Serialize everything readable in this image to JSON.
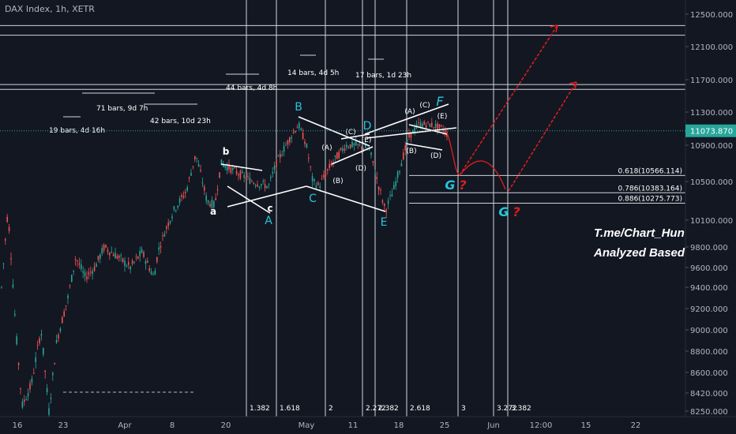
{
  "header": {
    "symbol_line": "DAX Index, 1h, XETR"
  },
  "price_axis": {
    "ticks": [
      8250.0,
      8420.0,
      8600.0,
      8800.0,
      9000.0,
      9200.0,
      9400.0,
      9600.0,
      9800.0,
      10100.0,
      10500.0,
      10900.0,
      11300.0,
      11700.0,
      12100.0,
      12500.0
    ],
    "tick_labels": [
      "8250.000",
      "8420.000",
      "8600.000",
      "8800.000",
      "9000.000",
      "9200.000",
      "9400.000",
      "9600.000",
      "9800.000",
      "10100.000",
      "10500.000",
      "10900.000",
      "11300.000",
      "11700.000",
      "12100.000",
      "12500.000"
    ],
    "current_price_label": "11073.870"
  },
  "time_axis": {
    "labels": [
      "16",
      "23",
      "Apr",
      "8",
      "20",
      "May",
      "11",
      "18",
      "25",
      "Jun",
      "12:00",
      "15",
      "22"
    ]
  },
  "chart_data": {
    "type": "candlestick",
    "title": "DAX Index, 1h, XETR",
    "ylim": [
      8250,
      12500
    ],
    "current_price": 11073.87,
    "horizontal_levels": [
      12360,
      12240,
      11640,
      11580,
      10566.114,
      10383.164,
      10275.773
    ],
    "fib_levels": [
      {
        "label": "0.618(10566.114)",
        "value": 10566.114
      },
      {
        "label": "0.786(10383.164)",
        "value": 10383.164
      },
      {
        "label": "0.886(10275.773)",
        "value": 10275.773
      }
    ],
    "vertical_lines": [
      {
        "label": "1.382"
      },
      {
        "label": "1.618"
      },
      {
        "label": "2"
      },
      {
        "label": "2.272"
      },
      {
        "label": "2.382"
      },
      {
        "label": "2.618"
      },
      {
        "label": "3"
      },
      {
        "label": "3.272"
      },
      {
        "label": "3.382"
      }
    ],
    "bar_counts": [
      "19 bars, 4d 16h",
      "71 bars, 9d 7h",
      "42 bars, 10d 23h",
      "44 bars, 4d 8h",
      "14 bars, 4d 5h",
      "17 bars, 1d 23h"
    ],
    "wave_labels": {
      "small": [
        "a",
        "b",
        "c"
      ],
      "cyan": [
        "A",
        "B",
        "C",
        "D",
        "E",
        "F"
      ],
      "sub": [
        "(A)",
        "(B)",
        "(C)",
        "(D)",
        "(E)"
      ],
      "targets": [
        "G",
        "?"
      ]
    }
  },
  "overlay_text": {
    "line1": "T.me/Chart_Hun",
    "line2": "Analyzed Based"
  },
  "colors": {
    "background": "#131722",
    "bull": "#26a69a",
    "bear": "#ef5350",
    "cyan": "#26c6da",
    "projection": "#e01e1e",
    "axis_text": "#b2b5be"
  }
}
